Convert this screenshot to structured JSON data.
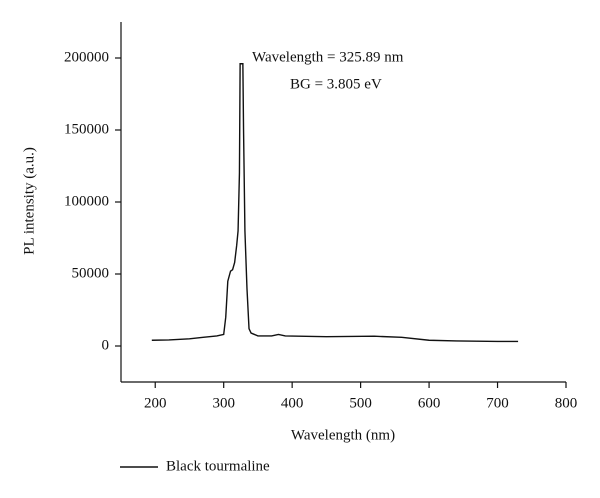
{
  "chart_data": {
    "type": "line",
    "x_label": "Wavelength (nm)",
    "y_label": "PL intensity (a.u.)",
    "annotations": [
      "Wavelength = 325.89 nm",
      "BG = 3.805 eV"
    ],
    "xlim": [
      150,
      800
    ],
    "xticks": [
      200,
      300,
      400,
      500,
      600,
      700,
      800
    ],
    "ylim": [
      -25000,
      225000
    ],
    "yticks": [
      0,
      50000,
      100000,
      150000,
      200000
    ],
    "legend": "bottom-left",
    "series": [
      {
        "name": "Black tourmaline",
        "color": "#111111",
        "x": [
          195,
          220,
          250,
          270,
          290,
          300,
          303,
          306,
          310,
          313,
          316,
          319,
          321,
          323,
          324,
          328,
          329,
          331,
          334,
          337,
          340,
          350,
          370,
          380,
          390,
          450,
          520,
          560,
          600,
          640,
          700,
          730
        ],
        "values": [
          4000,
          4200,
          5000,
          6000,
          7000,
          8000,
          20000,
          45000,
          52000,
          53000,
          58000,
          70000,
          80000,
          120000,
          196000,
          196000,
          150000,
          80000,
          40000,
          12000,
          9000,
          7000,
          7000,
          8000,
          7000,
          6500,
          6800,
          6000,
          4000,
          3500,
          3200,
          3200
        ]
      }
    ]
  }
}
